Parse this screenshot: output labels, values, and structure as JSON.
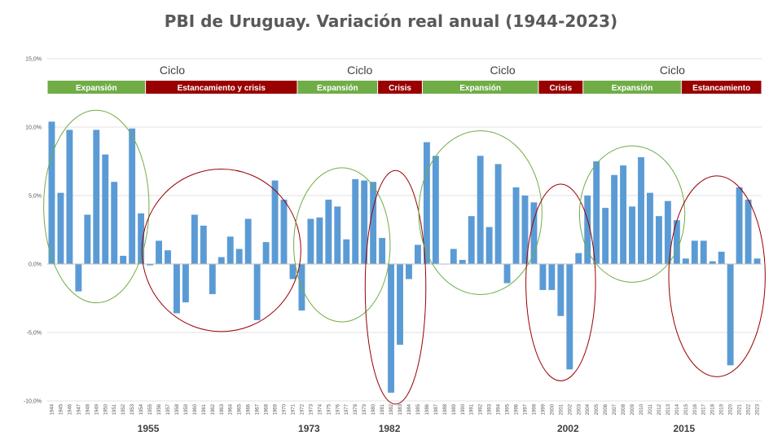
{
  "title": "PBI de Uruguay. Variación real anual (1944-2023)",
  "colors": {
    "bar": "#5b9bd5",
    "expansion": "#70ad47",
    "crisis": "#990000",
    "grid": "#d9d9d9",
    "text": "#595959"
  },
  "chart_data": {
    "type": "bar",
    "title": "PBI de Uruguay. Variación real anual (1944-2023)",
    "xlabel": "",
    "ylabel": "",
    "ylim": [
      -10,
      15
    ],
    "yticks": [
      -10,
      -5,
      0,
      5,
      10,
      15
    ],
    "ytick_labels": [
      "-10,0%",
      "-5,0%",
      "0,0%",
      "5,0%",
      "10,0%",
      "15,0%"
    ],
    "categories": [
      "1944",
      "1945",
      "1946",
      "1947",
      "1948",
      "1949",
      "1950",
      "1951",
      "1952",
      "1953",
      "1954",
      "1955",
      "1956",
      "1957",
      "1958",
      "1959",
      "1960",
      "1961",
      "1962",
      "1963",
      "1964",
      "1965",
      "1966",
      "1967",
      "1968",
      "1969",
      "1970",
      "1971",
      "1972",
      "1973",
      "1974",
      "1975",
      "1976",
      "1977",
      "1978",
      "1979",
      "1980",
      "1981",
      "1982",
      "1983",
      "1984",
      "1985",
      "1986",
      "1987",
      "1988",
      "1989",
      "1990",
      "1991",
      "1992",
      "1993",
      "1994",
      "1995",
      "1996",
      "1997",
      "1998",
      "1999",
      "2000",
      "2001",
      "2002",
      "2003",
      "2004",
      "2005",
      "2006",
      "2007",
      "2008",
      "2009",
      "2010",
      "2011",
      "2012",
      "2013",
      "2014",
      "2015",
      "2016",
      "2017",
      "2018",
      "2019",
      "2020",
      "2021",
      "2022",
      "2023"
    ],
    "values": [
      10.4,
      5.2,
      9.8,
      -2.0,
      3.6,
      9.8,
      8.0,
      6.0,
      0.6,
      9.9,
      3.7,
      -0.1,
      1.7,
      1.0,
      -3.6,
      -2.8,
      3.6,
      2.8,
      -2.2,
      0.5,
      2.0,
      1.1,
      3.3,
      -4.1,
      1.6,
      6.1,
      4.7,
      -1.1,
      -3.4,
      3.3,
      3.4,
      4.7,
      4.2,
      1.8,
      6.2,
      6.1,
      6.0,
      1.9,
      -9.4,
      -5.9,
      -1.1,
      1.4,
      8.9,
      7.9,
      0.0,
      1.1,
      0.3,
      3.5,
      7.9,
      2.7,
      7.3,
      -1.4,
      5.6,
      5.0,
      4.5,
      -1.9,
      -1.9,
      -3.8,
      -7.7,
      0.8,
      5.0,
      7.5,
      4.1,
      6.5,
      7.2,
      4.2,
      7.8,
      5.2,
      3.5,
      4.6,
      3.2,
      0.4,
      1.7,
      1.7,
      0.2,
      0.9,
      -7.4,
      5.6,
      4.7,
      0.4
    ],
    "cycles": [
      {
        "label": "Ciclo",
        "phases": [
          {
            "label": "Expansión",
            "type": "expansion",
            "from": "1944",
            "to": "1954"
          },
          {
            "label": "Estancamiento y crisis",
            "type": "crisis",
            "from": "1955",
            "to": "1971"
          }
        ]
      },
      {
        "label": "Ciclo",
        "phases": [
          {
            "label": "Expansión",
            "type": "expansion",
            "from": "1972",
            "to": "1980"
          },
          {
            "label": "Crisis",
            "type": "crisis",
            "from": "1981",
            "to": "1985"
          }
        ]
      },
      {
        "label": "Ciclo",
        "phases": [
          {
            "label": "Expansión",
            "type": "expansion",
            "from": "1986",
            "to": "1998"
          },
          {
            "label": "Crisis",
            "type": "crisis",
            "from": "1999",
            "to": "2003"
          }
        ]
      },
      {
        "label": "Ciclo",
        "phases": [
          {
            "label": "Expansión",
            "type": "expansion",
            "from": "2004",
            "to": "2014"
          },
          {
            "label": "Estancamiento",
            "type": "crisis",
            "from": "2015",
            "to": "2023"
          }
        ]
      }
    ],
    "highlight_groups": [
      {
        "type": "expansion",
        "from": "1944",
        "to": "1954"
      },
      {
        "type": "crisis",
        "from": "1955",
        "to": "1971"
      },
      {
        "type": "expansion",
        "from": "1972",
        "to": "1981"
      },
      {
        "type": "crisis",
        "from": "1980",
        "to": "1985"
      },
      {
        "type": "expansion",
        "from": "1986",
        "to": "1998"
      },
      {
        "type": "crisis",
        "from": "1998",
        "to": "2004"
      },
      {
        "type": "expansion",
        "from": "2004",
        "to": "2014"
      },
      {
        "type": "crisis",
        "from": "2014",
        "to": "2023"
      }
    ],
    "marker_years": [
      "1955",
      "1973",
      "1982",
      "2002",
      "2015"
    ]
  }
}
